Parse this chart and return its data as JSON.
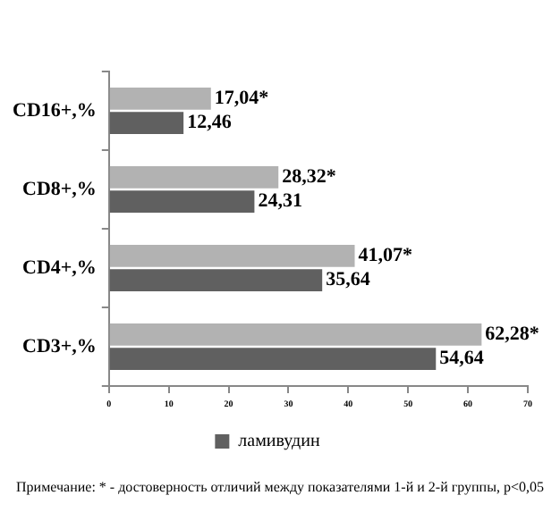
{
  "chart_data": {
    "type": "bar",
    "orientation": "horizontal",
    "categories": [
      "CD16+,%",
      "CD8+,%",
      "CD4+,%",
      "CD3+,%"
    ],
    "series": [
      {
        "color": "#b2b2b2",
        "values": [
          17.04,
          28.32,
          41.07,
          62.28
        ],
        "value_labels": [
          "17,04*",
          "28,32*",
          "41,07*",
          "62,28*"
        ]
      },
      {
        "name": "ламивудин",
        "color": "#606060",
        "values": [
          12.46,
          24.31,
          35.64,
          54.64
        ],
        "value_labels": [
          "12,46",
          "24,31",
          "35,64",
          "54,64"
        ]
      }
    ],
    "xlim": [
      0,
      70
    ],
    "xticks": [
      0,
      10,
      20,
      30,
      40,
      50,
      60,
      70
    ],
    "legend": "bottom",
    "annotations": [
      "Примечание: * - достоверность отличий между показателями 1-й и 2-й группы, p<0,05"
    ]
  }
}
